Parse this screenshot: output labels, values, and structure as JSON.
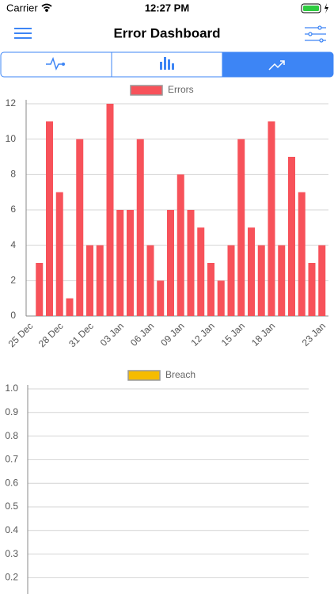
{
  "status_bar": {
    "carrier": "Carrier",
    "time": "12:27 PM"
  },
  "nav": {
    "title": "Error Dashboard"
  },
  "chart_data": [
    {
      "type": "bar",
      "categories": [
        "25 Dec",
        null,
        null,
        "28 Dec",
        null,
        null,
        "31 Dec",
        null,
        null,
        "03 Jan",
        null,
        null,
        "06 Jan",
        null,
        null,
        "09 Jan",
        null,
        null,
        "12 Jan",
        null,
        null,
        "15 Jan",
        null,
        null,
        "18 Jan",
        null,
        null,
        null,
        null,
        "23 Jan"
      ],
      "series": [
        {
          "name": "Errors",
          "color": "#f7525a",
          "values": [
            0,
            3,
            11,
            7,
            1,
            10,
            4,
            4,
            12,
            6,
            6,
            10,
            4,
            2,
            6,
            8,
            6,
            5,
            3,
            2,
            4,
            10,
            5,
            4,
            11,
            4,
            9,
            7,
            3,
            4
          ]
        }
      ],
      "ylim": [
        0,
        12
      ],
      "yticks": [
        0,
        2,
        4,
        6,
        8,
        10,
        12
      ],
      "grid": true
    },
    {
      "type": "bar",
      "categories": [],
      "series": [
        {
          "name": "Breach",
          "color": "#f5bc00",
          "values": []
        }
      ],
      "ylim": [
        0,
        1
      ],
      "yticks": [
        {
          "value": 1,
          "label": "1.0"
        },
        0.9,
        0.8,
        0.7,
        0.6,
        0.5,
        0.4,
        0.3,
        0.2
      ],
      "grid": true
    }
  ]
}
